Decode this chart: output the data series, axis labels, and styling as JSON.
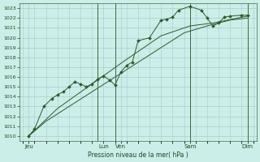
{
  "title": "Pression niveau de la mer( hPa )",
  "bg_color": "#cceee8",
  "grid_color": "#aacccc",
  "line_color": "#2d5a2d",
  "marker_color": "#2d5a2d",
  "yticks": [
    1010,
    1011,
    1012,
    1013,
    1014,
    1015,
    1016,
    1017,
    1018,
    1019,
    1020,
    1021,
    1022,
    1023
  ],
  "ylim": [
    1009.5,
    1023.5
  ],
  "xlim": [
    -0.3,
    20.3
  ],
  "day_positions": [
    0.5,
    7.0,
    8.5,
    14.5,
    19.5
  ],
  "day_labels": [
    "Jeu",
    "Lun",
    "Ven",
    "Sam",
    "Dim"
  ],
  "vlines": [
    6.5,
    8.0,
    14.5,
    19.5
  ],
  "line1_x": [
    0.5,
    1.0,
    1.8,
    2.5,
    3.0,
    3.5,
    4.0,
    4.5,
    5.0,
    5.5,
    6.0,
    6.5,
    7.0,
    7.5,
    8.0,
    8.5,
    9.0,
    9.5,
    10.0,
    11.0,
    12.0,
    12.5,
    13.0,
    13.5,
    14.5,
    15.5,
    16.0,
    16.5,
    17.0,
    17.5,
    18.0,
    19.0,
    19.5
  ],
  "line1_y": [
    1010.0,
    1010.7,
    1013.0,
    1013.8,
    1014.2,
    1014.5,
    1015.0,
    1015.5,
    1015.3,
    1015.0,
    1015.3,
    1015.8,
    1016.1,
    1015.7,
    1015.2,
    1016.5,
    1017.2,
    1017.5,
    1019.7,
    1020.0,
    1021.8,
    1021.9,
    1022.1,
    1022.8,
    1023.2,
    1022.8,
    1022.0,
    1021.2,
    1021.5,
    1022.1,
    1022.2,
    1022.3,
    1022.3
  ],
  "line2_x": [
    0.5,
    2.0,
    4.0,
    6.0,
    8.0,
    10.0,
    12.0,
    14.0,
    16.0,
    18.0,
    19.5
  ],
  "line2_y": [
    1010.0,
    1011.5,
    1013.0,
    1014.5,
    1016.0,
    1017.5,
    1019.0,
    1020.5,
    1021.2,
    1021.8,
    1022.0
  ],
  "line3_x": [
    0.5,
    3.0,
    6.0,
    9.0,
    12.0,
    14.5,
    16.5,
    19.5
  ],
  "line3_y": [
    1010.0,
    1012.8,
    1015.3,
    1017.8,
    1020.2,
    1021.2,
    1021.5,
    1022.2
  ]
}
